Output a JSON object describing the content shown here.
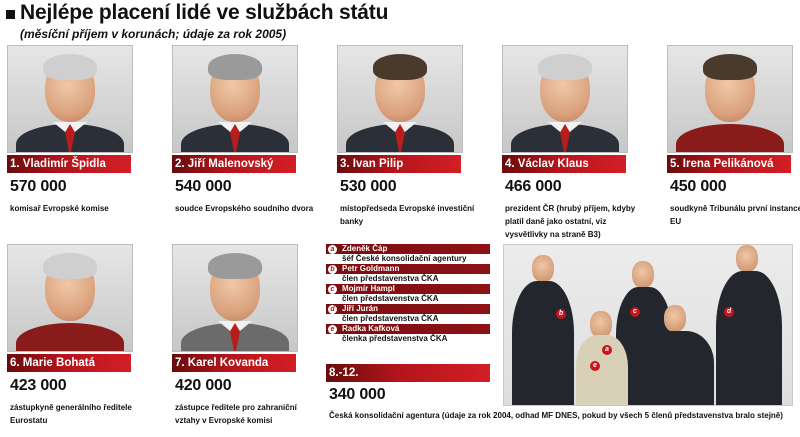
{
  "header": {
    "title": "Nejlépe placení lidé ve službách státu",
    "subtitle": "(měsíční příjem v korunách; údaje za rok 2005)"
  },
  "people": [
    {
      "label": "1. Vladimír Špidla",
      "amount": "570 000",
      "desc": "komisař Evropské komise"
    },
    {
      "label": "2. Jiří Malenovský",
      "amount": "540 000",
      "desc": "soudce Evropského soudního dvora"
    },
    {
      "label": "3. Ivan Pilip",
      "amount": "530 000",
      "desc": "místopředseda Evropské investiční banky"
    },
    {
      "label": "4. Václav Klaus",
      "amount": "466 000",
      "desc": "prezident ČR (hrubý příjem, kdyby platil daně jako ostatní, viz vysvětlivky na straně B3)"
    },
    {
      "label": "5. Irena Pelikánová",
      "amount": "450 000",
      "desc": "soudkyně Tribunálu první instance EU"
    },
    {
      "label": "6. Marie Bohatá",
      "amount": "423 000",
      "desc": "zástupkyně generálního ředitele Eurostatu"
    },
    {
      "label": "7. Karel Kovanda",
      "amount": "420 000",
      "desc": "zástupce ředitele pro zahraniční vztahy v Evropské komisi"
    }
  ],
  "cka": {
    "members": [
      {
        "letter": "a",
        "name": "Zdeněk Čáp",
        "role": "šéf České konsolidační agentury"
      },
      {
        "letter": "b",
        "name": "Petr Goldmann",
        "role": "člen představenstva ČKA"
      },
      {
        "letter": "c",
        "name": "Mojmír Hampl",
        "role": "člen představenstva ČKA"
      },
      {
        "letter": "d",
        "name": "Jiří Jurán",
        "role": "člen představenstva ČKA"
      },
      {
        "letter": "e",
        "name": "Radka Kafková",
        "role": "členka představenstva ČKA"
      }
    ],
    "rank_label": "8.-12.",
    "amount": "340 000",
    "desc": "Česká konsolidační agentura (údaje za rok 2004, odhad MF DNES, pokud by všech 5 členů představenstva bralo stejně)"
  },
  "colors": {
    "accent_red": "#b3151b",
    "dark_red": "#6a0c0c",
    "text": "#111111"
  }
}
